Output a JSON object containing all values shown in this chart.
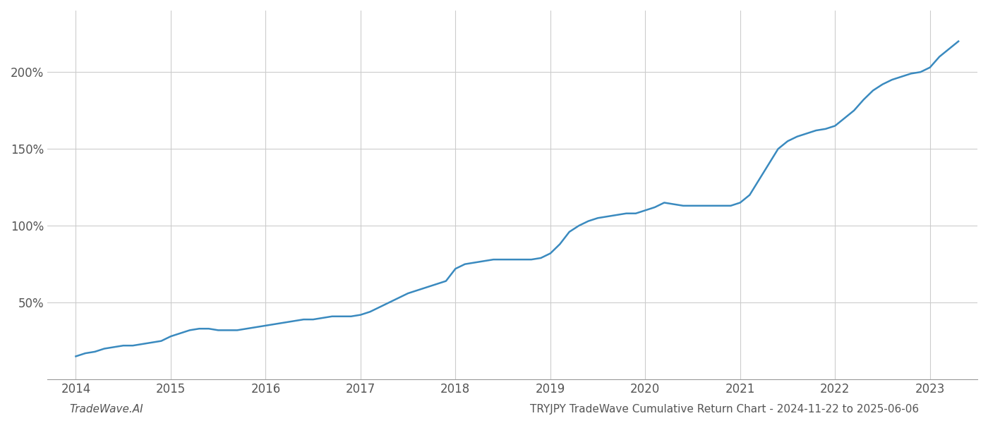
{
  "title": "TRYJPY TradeWave Cumulative Return Chart - 2024-11-22 to 2025-06-06",
  "watermark": "TradeWave.AI",
  "line_color": "#3a8abf",
  "line_width": 1.8,
  "background_color": "#ffffff",
  "grid_color": "#cccccc",
  "x_years": [
    2014,
    2015,
    2016,
    2017,
    2018,
    2019,
    2020,
    2021,
    2022,
    2023
  ],
  "y_ticks": [
    50,
    100,
    150,
    200
  ],
  "xlim": [
    2013.7,
    2023.5
  ],
  "ylim": [
    0,
    240
  ],
  "data_x": [
    2014.0,
    2014.1,
    2014.2,
    2014.3,
    2014.4,
    2014.5,
    2014.6,
    2014.7,
    2014.8,
    2014.9,
    2015.0,
    2015.1,
    2015.2,
    2015.3,
    2015.4,
    2015.5,
    2015.6,
    2015.7,
    2015.8,
    2015.9,
    2016.0,
    2016.1,
    2016.2,
    2016.3,
    2016.4,
    2016.5,
    2016.6,
    2016.7,
    2016.8,
    2016.9,
    2017.0,
    2017.1,
    2017.2,
    2017.3,
    2017.4,
    2017.5,
    2017.6,
    2017.7,
    2017.8,
    2017.9,
    2018.0,
    2018.1,
    2018.2,
    2018.3,
    2018.4,
    2018.5,
    2018.6,
    2018.7,
    2018.8,
    2018.9,
    2019.0,
    2019.1,
    2019.2,
    2019.3,
    2019.4,
    2019.5,
    2019.6,
    2019.7,
    2019.8,
    2019.9,
    2020.0,
    2020.1,
    2020.2,
    2020.3,
    2020.4,
    2020.5,
    2020.6,
    2020.7,
    2020.8,
    2020.9,
    2021.0,
    2021.1,
    2021.2,
    2021.3,
    2021.4,
    2021.5,
    2021.6,
    2021.7,
    2021.8,
    2021.9,
    2022.0,
    2022.1,
    2022.2,
    2022.3,
    2022.4,
    2022.5,
    2022.6,
    2022.7,
    2022.8,
    2022.9,
    2023.0,
    2023.1,
    2023.2,
    2023.3
  ],
  "data_y": [
    15,
    17,
    18,
    20,
    21,
    22,
    22,
    23,
    24,
    25,
    28,
    30,
    32,
    33,
    33,
    32,
    32,
    32,
    33,
    34,
    35,
    36,
    37,
    38,
    39,
    39,
    40,
    41,
    41,
    41,
    42,
    44,
    47,
    50,
    53,
    56,
    58,
    60,
    62,
    64,
    72,
    75,
    76,
    77,
    78,
    78,
    78,
    78,
    78,
    79,
    82,
    88,
    96,
    100,
    103,
    105,
    106,
    107,
    108,
    108,
    110,
    112,
    115,
    114,
    113,
    113,
    113,
    113,
    113,
    113,
    115,
    120,
    130,
    140,
    150,
    155,
    158,
    160,
    162,
    163,
    165,
    170,
    175,
    182,
    188,
    192,
    195,
    197,
    199,
    200,
    203,
    210,
    215,
    220
  ]
}
